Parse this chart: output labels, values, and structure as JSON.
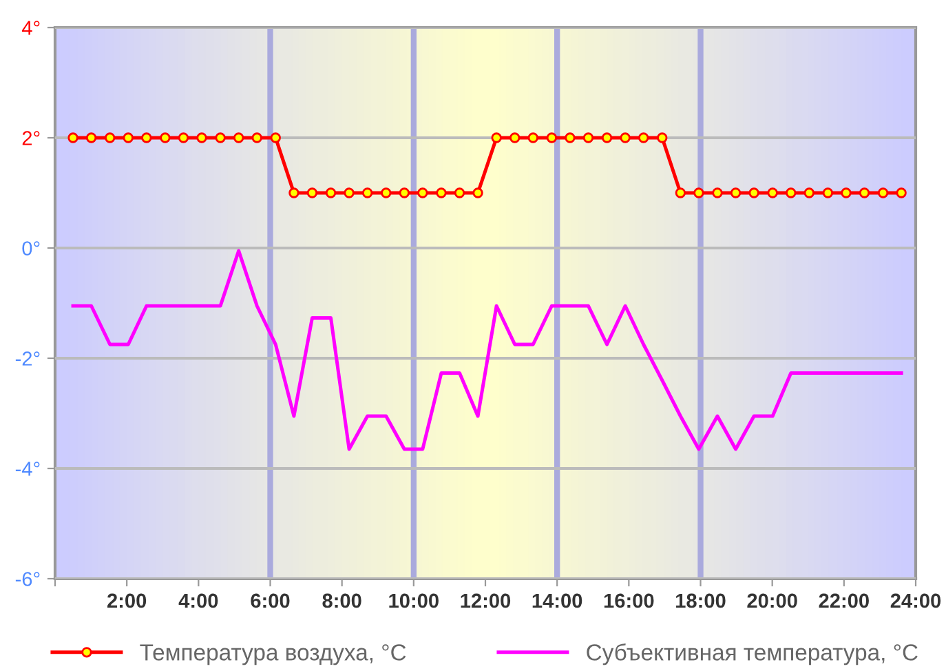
{
  "chart_data": {
    "type": "line",
    "x": [
      0.5,
      1.01,
      1.53,
      2.04,
      2.55,
      3.07,
      3.58,
      4.09,
      4.61,
      5.12,
      5.63,
      6.15,
      6.66,
      7.17,
      7.69,
      8.2,
      8.71,
      9.23,
      9.74,
      10.25,
      10.77,
      11.28,
      11.79,
      12.31,
      12.82,
      13.33,
      13.85,
      14.36,
      14.87,
      15.39,
      15.9,
      16.41,
      16.93,
      17.44,
      17.95,
      18.47,
      18.98,
      19.49,
      20.01,
      20.52,
      21.03,
      21.55,
      22.06,
      22.57,
      23.09,
      23.6
    ],
    "series": [
      {
        "name": "Температура воздуха, °C",
        "color": "#ff0000",
        "marker": "circle",
        "values": [
          2,
          2,
          2,
          2,
          2,
          2,
          2,
          2,
          2,
          2,
          2,
          2,
          1,
          1,
          1,
          1,
          1,
          1,
          1,
          1,
          1,
          1,
          1,
          2,
          2,
          2,
          2,
          2,
          2,
          2,
          2,
          2,
          2,
          1,
          1,
          1,
          1,
          1,
          1,
          1,
          1,
          1,
          1,
          1,
          1,
          1
        ]
      },
      {
        "name": "Субъективная температура, °C",
        "color": "#ff00ff",
        "marker": "none",
        "values": [
          -1.05,
          -1.05,
          -1.75,
          -1.75,
          -1.05,
          -1.05,
          -1.05,
          -1.05,
          -1.05,
          -0.05,
          -1.05,
          -1.75,
          -3.05,
          -1.27,
          -1.27,
          -3.65,
          -3.05,
          -3.05,
          -3.65,
          -3.65,
          -2.27,
          -2.27,
          -3.05,
          -1.05,
          -1.75,
          -1.75,
          -1.05,
          -1.05,
          -1.05,
          -1.75,
          -1.05,
          -1.75,
          -2.4,
          -3.05,
          -3.65,
          -3.05,
          -3.65,
          -3.05,
          -3.05,
          -2.27,
          -2.27,
          -2.27,
          -2.27,
          -2.27,
          -2.27,
          -2.27
        ]
      }
    ],
    "xlim": [
      0,
      24
    ],
    "ylim": [
      -6,
      4
    ],
    "xticks": [
      {
        "value": 0,
        "label": null
      },
      {
        "value": 2,
        "label": "2:00"
      },
      {
        "value": 4,
        "label": "4:00"
      },
      {
        "value": 6,
        "label": "6:00"
      },
      {
        "value": 8,
        "label": "8:00"
      },
      {
        "value": 10,
        "label": "10:00"
      },
      {
        "value": 12,
        "label": "12:00"
      },
      {
        "value": 14,
        "label": "14:00"
      },
      {
        "value": 16,
        "label": "16:00"
      },
      {
        "value": 18,
        "label": "18:00"
      },
      {
        "value": 20,
        "label": "20:00"
      },
      {
        "value": 22,
        "label": "22:00"
      },
      {
        "value": 24,
        "label": "24:00"
      }
    ],
    "yticks": [
      {
        "value": 4,
        "label": "4°"
      },
      {
        "value": 2,
        "label": "2°"
      },
      {
        "value": 0,
        "label": "0°"
      },
      {
        "value": -2,
        "label": "-2°"
      },
      {
        "value": -4,
        "label": "-4°"
      },
      {
        "value": -6,
        "label": "-6°"
      }
    ],
    "ref_lines": [
      {
        "axis": "x",
        "value": 6,
        "color": "#aaaadd"
      },
      {
        "axis": "x",
        "value": 10,
        "color": "#aaaadd"
      },
      {
        "axis": "x",
        "value": 14,
        "color": "#aaaadd"
      },
      {
        "axis": "x",
        "value": 18,
        "color": "#aaaadd"
      }
    ],
    "grid": "y",
    "legend": "bottom",
    "line_style": "solid"
  }
}
